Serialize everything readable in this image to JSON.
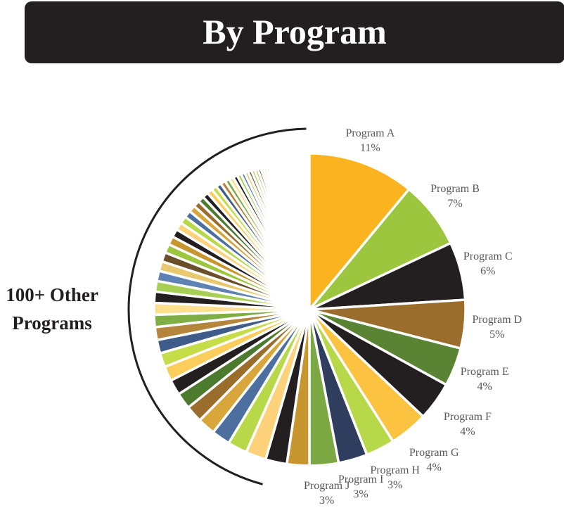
{
  "header": {
    "title": "By Program"
  },
  "other_label": {
    "line1": "100+ Other",
    "line2": "Programs"
  },
  "chart_data": {
    "type": "pie",
    "title": "By Program",
    "slices": [
      {
        "label": "Program A",
        "value_label": "11%",
        "value": 11,
        "color": "#fbb41f"
      },
      {
        "label": "Program B",
        "value_label": "7%",
        "value": 7,
        "color": "#9dc63f"
      },
      {
        "label": "Program C",
        "value_label": "6%",
        "value": 6,
        "color": "#231f20"
      },
      {
        "label": "Program D",
        "value_label": "5%",
        "value": 5,
        "color": "#9a6d2d"
      },
      {
        "label": "Program E",
        "value_label": "4%",
        "value": 4,
        "color": "#5a8433"
      },
      {
        "label": "Program F",
        "value_label": "4%",
        "value": 4,
        "color": "#231f20"
      },
      {
        "label": "Program G",
        "value_label": "4%",
        "value": 4,
        "color": "#fcc340"
      },
      {
        "label": "Program H",
        "value_label": "3%",
        "value": 3,
        "color": "#b7d848"
      },
      {
        "label": "Program I",
        "value_label": "3%",
        "value": 3,
        "color": "#2f3e5e"
      },
      {
        "label": "Program J",
        "value_label": "3%",
        "value": 3,
        "color": "#7ba843"
      }
    ],
    "other_slices_palette": [
      "#c8962e",
      "#231f20",
      "#fdd27a",
      "#b7d848",
      "#4c6f9f",
      "#d9a63c",
      "#9a6d2d",
      "#4c7a2f",
      "#231f20",
      "#fbcd5a",
      "#c6dd4a",
      "#3f5b8a",
      "#b4853a",
      "#7fae45",
      "#fde08f",
      "#231f20",
      "#a7cf53",
      "#5f82b5",
      "#e9c970",
      "#6a4f2a",
      "#9dc63f"
    ]
  }
}
